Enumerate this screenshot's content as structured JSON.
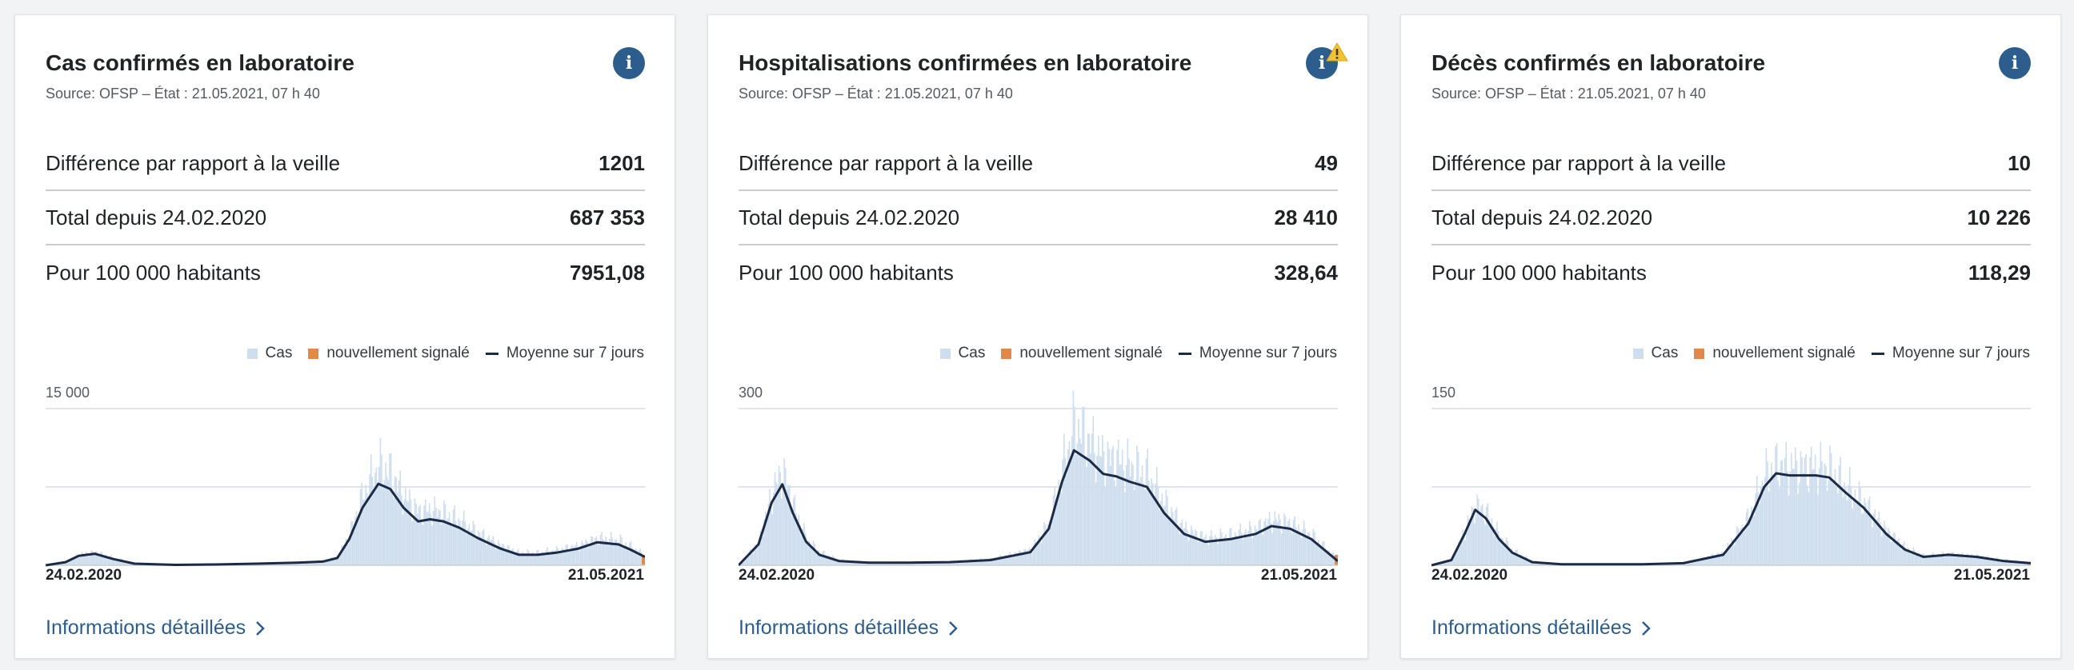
{
  "colors": {
    "accent": "#2c5d8c",
    "bars": "#cfdeee",
    "new_reported": "#e0894a",
    "average_line": "#1b2b45",
    "warning": "#f1c232"
  },
  "cards": [
    {
      "title": "Cas confirmés en laboratoire",
      "source": "Source: OFSP – État : 21.05.2021, 07 h 40",
      "info_icon": "info-icon",
      "info_glyph": "i",
      "has_warning": false,
      "stats": [
        {
          "label": "Différence par rapport à la veille",
          "value": "1201"
        },
        {
          "label": "Total depuis 24.02.2020",
          "value": "687 353"
        },
        {
          "label": "Pour 100 000 habitants",
          "value": "7951,08"
        }
      ],
      "legend": {
        "bars": "Cas",
        "new": "nouvellement signalé",
        "avg": "Moyenne sur 7 jours"
      },
      "y_tick": "15 000",
      "x_start": "24.02.2020",
      "x_end": "21.05.2021",
      "link": "Informations détaillées",
      "link_icon": "chevron-right-icon"
    },
    {
      "title": "Hospitalisations confirmées en laboratoire",
      "source": "Source: OFSP – État : 21.05.2021, 07 h 40",
      "info_icon": "info-icon",
      "info_glyph": "i",
      "has_warning": true,
      "warning_icon": "warning-icon",
      "stats": [
        {
          "label": "Différence par rapport à la veille",
          "value": "49"
        },
        {
          "label": "Total depuis 24.02.2020",
          "value": "28 410"
        },
        {
          "label": "Pour 100 000 habitants",
          "value": "328,64"
        }
      ],
      "legend": {
        "bars": "Cas",
        "new": "nouvellement signalé",
        "avg": "Moyenne sur 7 jours"
      },
      "y_tick": "300",
      "x_start": "24.02.2020",
      "x_end": "21.05.2021",
      "link": "Informations détaillées",
      "link_icon": "chevron-right-icon"
    },
    {
      "title": "Décès confirmés en laboratoire",
      "source": "Source: OFSP – État : 21.05.2021, 07 h 40",
      "info_icon": "info-icon",
      "info_glyph": "i",
      "has_warning": false,
      "stats": [
        {
          "label": "Différence par rapport à la veille",
          "value": "10"
        },
        {
          "label": "Total depuis 24.02.2020",
          "value": "10 226"
        },
        {
          "label": "Pour 100 000 habitants",
          "value": "118,29"
        }
      ],
      "legend": {
        "bars": "Cas",
        "new": "nouvellement signalé",
        "avg": "Moyenne sur 7 jours"
      },
      "y_tick": "150",
      "x_start": "24.02.2020",
      "x_end": "21.05.2021",
      "link": "Informations détaillées",
      "link_icon": "chevron-right-icon"
    }
  ],
  "chart_data": [
    {
      "type": "area",
      "x_range": [
        "24.02.2020",
        "21.05.2021"
      ],
      "ylim": [
        0,
        15000
      ],
      "grid": true,
      "legend_position": "top-right",
      "series": [
        {
          "name": "Cas",
          "type": "bar"
        },
        {
          "name": "Moyenne sur 7 jours",
          "type": "line"
        }
      ],
      "x": [
        "2020-02-24",
        "2020-03-10",
        "2020-03-20",
        "2020-04-01",
        "2020-04-15",
        "2020-05-01",
        "2020-06-01",
        "2020-07-01",
        "2020-08-01",
        "2020-09-01",
        "2020-09-20",
        "2020-10-01",
        "2020-10-10",
        "2020-10-20",
        "2020-11-01",
        "2020-11-10",
        "2020-11-20",
        "2020-12-01",
        "2020-12-10",
        "2020-12-20",
        "2021-01-01",
        "2021-01-15",
        "2021-02-01",
        "2021-02-15",
        "2021-03-01",
        "2021-03-15",
        "2021-04-01",
        "2021-04-15",
        "2021-05-01",
        "2021-05-10",
        "2021-05-21"
      ],
      "moyenne": [
        0,
        300,
        900,
        1100,
        600,
        150,
        40,
        80,
        150,
        250,
        350,
        700,
        2500,
        5500,
        7800,
        7300,
        5500,
        4200,
        4400,
        4200,
        3600,
        2600,
        1600,
        1000,
        1000,
        1200,
        1600,
        2200,
        2000,
        1500,
        800
      ],
      "cas": [
        0,
        350,
        1050,
        1250,
        700,
        180,
        50,
        100,
        180,
        300,
        420,
        850,
        3000,
        6800,
        9600,
        8800,
        6600,
        5100,
        5300,
        5000,
        4300,
        3100,
        1900,
        1200,
        1200,
        1450,
        1900,
        2600,
        2400,
        1800,
        950
      ],
      "new_reported_last": 950
    },
    {
      "type": "area",
      "x_range": [
        "24.02.2020",
        "21.05.2021"
      ],
      "ylim": [
        0,
        300
      ],
      "grid": true,
      "legend_position": "top-right",
      "series": [
        {
          "name": "Cas",
          "type": "bar"
        },
        {
          "name": "Moyenne sur 7 jours",
          "type": "line"
        }
      ],
      "x": [
        "2020-02-24",
        "2020-03-10",
        "2020-03-20",
        "2020-03-28",
        "2020-04-05",
        "2020-04-15",
        "2020-04-25",
        "2020-05-10",
        "2020-06-01",
        "2020-07-01",
        "2020-08-01",
        "2020-09-01",
        "2020-10-01",
        "2020-10-15",
        "2020-10-25",
        "2020-11-03",
        "2020-11-15",
        "2020-11-25",
        "2020-12-05",
        "2020-12-15",
        "2020-12-28",
        "2021-01-10",
        "2021-01-25",
        "2021-02-10",
        "2021-03-01",
        "2021-03-20",
        "2021-04-01",
        "2021-04-15",
        "2021-05-01",
        "2021-05-21"
      ],
      "moyenne": [
        0,
        40,
        120,
        155,
        100,
        45,
        20,
        8,
        5,
        5,
        6,
        10,
        25,
        70,
        160,
        220,
        200,
        175,
        170,
        160,
        150,
        100,
        60,
        45,
        50,
        60,
        75,
        70,
        50,
        8
      ],
      "cas": [
        0,
        45,
        140,
        180,
        115,
        50,
        25,
        10,
        6,
        6,
        7,
        12,
        30,
        80,
        185,
        270,
        235,
        205,
        200,
        190,
        175,
        120,
        70,
        52,
        58,
        70,
        88,
        80,
        58,
        10
      ],
      "new_reported_last": 20
    },
    {
      "type": "area",
      "x_range": [
        "24.02.2020",
        "21.05.2021"
      ],
      "ylim": [
        0,
        150
      ],
      "grid": true,
      "legend_position": "top-right",
      "series": [
        {
          "name": "Cas",
          "type": "bar"
        },
        {
          "name": "Moyenne sur 7 jours",
          "type": "line"
        }
      ],
      "x": [
        "2020-02-24",
        "2020-03-10",
        "2020-03-20",
        "2020-03-28",
        "2020-04-05",
        "2020-04-15",
        "2020-04-25",
        "2020-05-10",
        "2020-06-01",
        "2020-07-01",
        "2020-08-01",
        "2020-09-01",
        "2020-10-01",
        "2020-10-20",
        "2020-11-01",
        "2020-11-10",
        "2020-11-20",
        "2020-12-01",
        "2020-12-10",
        "2020-12-20",
        "2021-01-01",
        "2021-01-15",
        "2021-02-01",
        "2021-02-15",
        "2021-03-01",
        "2021-03-20",
        "2021-04-10",
        "2021-05-01",
        "2021-05-21"
      ],
      "moyenne": [
        0,
        5,
        30,
        53,
        45,
        25,
        12,
        3,
        1,
        1,
        1,
        2,
        10,
        40,
        75,
        88,
        86,
        86,
        86,
        84,
        70,
        55,
        30,
        15,
        8,
        10,
        8,
        4,
        2
      ],
      "cas": [
        0,
        6,
        34,
        58,
        50,
        28,
        14,
        4,
        1,
        1,
        1,
        2,
        12,
        46,
        86,
        96,
        94,
        94,
        94,
        92,
        76,
        60,
        33,
        17,
        9,
        11,
        9,
        5,
        2
      ],
      "new_reported_last": 1
    }
  ]
}
